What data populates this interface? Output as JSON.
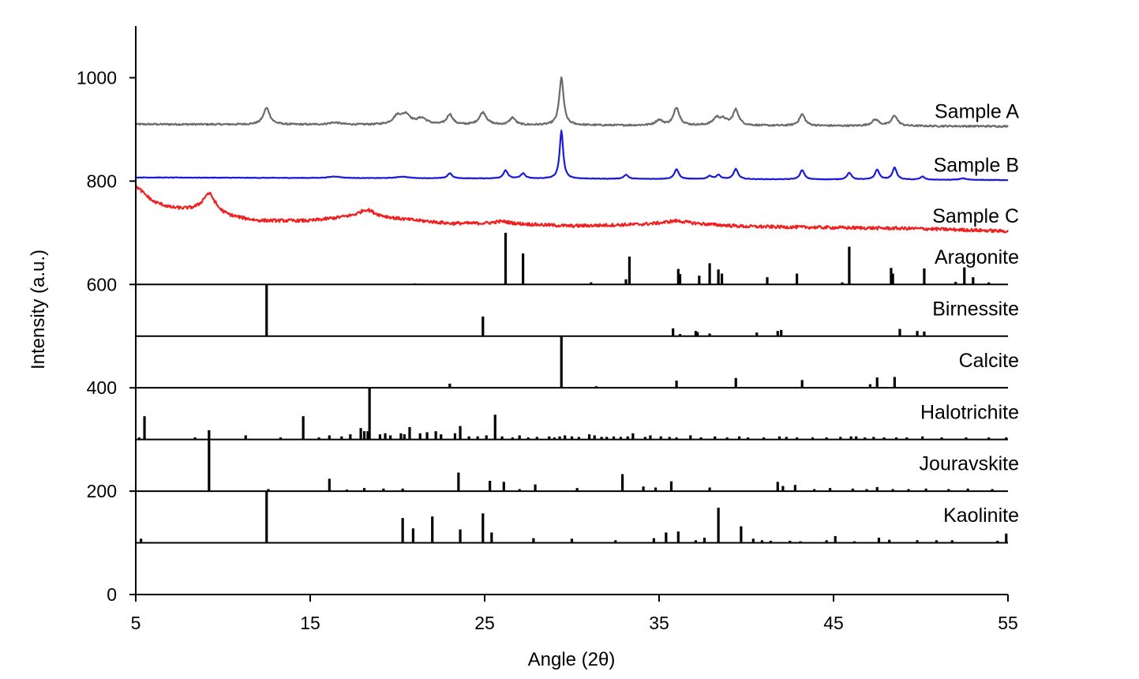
{
  "chart_data": {
    "type": "line",
    "title": "",
    "xlabel": "Angle (2θ)",
    "ylabel": "Intensity (a.u.)",
    "xlim": [
      5,
      55
    ],
    "ylim": [
      0,
      1100
    ],
    "x_ticks": [
      "5",
      "15",
      "25",
      "35",
      "45",
      "55"
    ],
    "y_ticks": [
      "0",
      "200",
      "400",
      "600",
      "800",
      "1000"
    ],
    "grid": false,
    "legend": "none (series labeled directly at right)",
    "series": [
      {
        "name": "Sample A",
        "kind": "pattern",
        "color": "#6b6b6b",
        "baseline": [
          [
            5,
            910
          ],
          [
            55,
            906
          ]
        ],
        "noise": 1.5,
        "peaks": [
          [
            12.5,
            32,
            0.22
          ],
          [
            16.4,
            4,
            0.4
          ],
          [
            20.0,
            16,
            0.3
          ],
          [
            20.5,
            18,
            0.3
          ],
          [
            21.4,
            12,
            0.35
          ],
          [
            23.0,
            20,
            0.2
          ],
          [
            24.9,
            24,
            0.25
          ],
          [
            26.6,
            14,
            0.2
          ],
          [
            29.4,
            92,
            0.15
          ],
          [
            35.0,
            10,
            0.25
          ],
          [
            36.0,
            34,
            0.2
          ],
          [
            38.3,
            14,
            0.25
          ],
          [
            38.7,
            10,
            0.25
          ],
          [
            39.4,
            30,
            0.2
          ],
          [
            43.2,
            22,
            0.2
          ],
          [
            47.4,
            12,
            0.25
          ],
          [
            48.5,
            20,
            0.2
          ]
        ]
      },
      {
        "name": "Sample B",
        "kind": "pattern",
        "color": "#1a1adb",
        "baseline": [
          [
            5,
            807
          ],
          [
            55,
            802
          ]
        ],
        "noise": 0.5,
        "peaks": [
          [
            16.4,
            3,
            0.4
          ],
          [
            20.3,
            3,
            0.4
          ],
          [
            23.0,
            10,
            0.15
          ],
          [
            26.2,
            16,
            0.15
          ],
          [
            27.2,
            10,
            0.15
          ],
          [
            29.4,
            93,
            0.12
          ],
          [
            33.1,
            8,
            0.15
          ],
          [
            36.0,
            19,
            0.15
          ],
          [
            37.9,
            6,
            0.15
          ],
          [
            38.4,
            8,
            0.15
          ],
          [
            39.4,
            20,
            0.15
          ],
          [
            43.2,
            18,
            0.15
          ],
          [
            45.9,
            13,
            0.15
          ],
          [
            47.5,
            19,
            0.15
          ],
          [
            48.5,
            23,
            0.15
          ],
          [
            50.1,
            6,
            0.15
          ],
          [
            52.4,
            3,
            0.2
          ]
        ]
      },
      {
        "name": "Sample C",
        "kind": "pattern",
        "color": "#f02020",
        "baseline": [
          [
            5,
            790
          ],
          [
            6,
            760
          ],
          [
            7,
            748
          ],
          [
            8.5,
            742
          ],
          [
            10.5,
            730
          ],
          [
            12,
            723
          ],
          [
            15,
            723
          ],
          [
            17,
            730
          ],
          [
            18.5,
            733
          ],
          [
            20,
            727
          ],
          [
            23,
            718
          ],
          [
            26,
            718
          ],
          [
            30,
            713
          ],
          [
            34,
            716
          ],
          [
            36,
            719
          ],
          [
            40,
            712
          ],
          [
            45,
            710
          ],
          [
            50,
            708
          ],
          [
            55,
            703
          ]
        ],
        "noise": 3,
        "peaks": [
          [
            9.2,
            38,
            0.45
          ],
          [
            18.2,
            12,
            0.5
          ],
          [
            26.0,
            4,
            0.5
          ],
          [
            36.0,
            4,
            0.8
          ]
        ]
      },
      {
        "name": "Aragonite",
        "kind": "reference",
        "color": "#000000",
        "baseline_y": 600,
        "peaks": [
          [
            21.0,
            2
          ],
          [
            26.2,
            100
          ],
          [
            27.2,
            60
          ],
          [
            31.1,
            4
          ],
          [
            33.1,
            10
          ],
          [
            33.3,
            54
          ],
          [
            36.1,
            30
          ],
          [
            36.2,
            20
          ],
          [
            37.3,
            17
          ],
          [
            37.9,
            41
          ],
          [
            38.4,
            29
          ],
          [
            38.6,
            21
          ],
          [
            41.2,
            14
          ],
          [
            42.9,
            21
          ],
          [
            45.5,
            4
          ],
          [
            45.9,
            73
          ],
          [
            48.3,
            32
          ],
          [
            48.4,
            21
          ],
          [
            50.2,
            31
          ],
          [
            52.0,
            5
          ],
          [
            52.5,
            33
          ],
          [
            53.0,
            14
          ],
          [
            53.9,
            4
          ]
        ]
      },
      {
        "name": "Birnessite",
        "kind": "reference",
        "color": "#000000",
        "baseline_y": 500,
        "peaks": [
          [
            12.5,
            100
          ],
          [
            24.9,
            38
          ],
          [
            35.8,
            15
          ],
          [
            36.2,
            4
          ],
          [
            37.1,
            10
          ],
          [
            37.2,
            8
          ],
          [
            37.9,
            5
          ],
          [
            40.6,
            7
          ],
          [
            41.8,
            10
          ],
          [
            42.0,
            12
          ],
          [
            48.8,
            14
          ],
          [
            49.8,
            10
          ],
          [
            50.2,
            9
          ]
        ]
      },
      {
        "name": "Calcite",
        "kind": "reference",
        "color": "#000000",
        "baseline_y": 400,
        "peaks": [
          [
            23.0,
            8
          ],
          [
            29.4,
            100
          ],
          [
            31.4,
            3
          ],
          [
            36.0,
            14
          ],
          [
            39.4,
            19
          ],
          [
            43.2,
            15
          ],
          [
            47.1,
            7
          ],
          [
            47.5,
            20
          ],
          [
            48.5,
            21
          ]
        ]
      },
      {
        "name": "Halotrichite",
        "kind": "reference",
        "color": "#000000",
        "baseline_y": 300,
        "peaks": [
          [
            5.2,
            4
          ],
          [
            5.5,
            45
          ],
          [
            8.4,
            4
          ],
          [
            9.2,
            18
          ],
          [
            11.3,
            8
          ],
          [
            13.3,
            4
          ],
          [
            14.6,
            45
          ],
          [
            15.5,
            4
          ],
          [
            16.1,
            8
          ],
          [
            16.8,
            6
          ],
          [
            17.3,
            10
          ],
          [
            17.9,
            22
          ],
          [
            18.1,
            16
          ],
          [
            18.3,
            16
          ],
          [
            18.4,
            100
          ],
          [
            19.0,
            10
          ],
          [
            19.3,
            12
          ],
          [
            19.6,
            8
          ],
          [
            20.2,
            12
          ],
          [
            20.4,
            10
          ],
          [
            20.7,
            24
          ],
          [
            21.3,
            12
          ],
          [
            21.7,
            14
          ],
          [
            22.2,
            16
          ],
          [
            22.5,
            10
          ],
          [
            23.3,
            12
          ],
          [
            23.6,
            26
          ],
          [
            24.1,
            6
          ],
          [
            24.6,
            6
          ],
          [
            25.1,
            8
          ],
          [
            25.6,
            48
          ],
          [
            26.0,
            6
          ],
          [
            26.6,
            4
          ],
          [
            27.0,
            8
          ],
          [
            27.5,
            4
          ],
          [
            28.0,
            5
          ],
          [
            28.7,
            6
          ],
          [
            29.0,
            4
          ],
          [
            29.3,
            6
          ],
          [
            29.6,
            8
          ],
          [
            30.0,
            6
          ],
          [
            30.4,
            5
          ],
          [
            31.0,
            10
          ],
          [
            31.3,
            8
          ],
          [
            31.7,
            5
          ],
          [
            32.0,
            5
          ],
          [
            32.4,
            6
          ],
          [
            32.8,
            5
          ],
          [
            33.2,
            6
          ],
          [
            33.5,
            12
          ],
          [
            34.2,
            5
          ],
          [
            34.5,
            8
          ],
          [
            35.1,
            6
          ],
          [
            35.6,
            5
          ],
          [
            36.0,
            4
          ],
          [
            36.8,
            8
          ],
          [
            37.4,
            4
          ],
          [
            38.2,
            6
          ],
          [
            38.9,
            4
          ],
          [
            39.6,
            6
          ],
          [
            40.1,
            4
          ],
          [
            41.0,
            4
          ],
          [
            41.9,
            6
          ],
          [
            42.3,
            5
          ],
          [
            42.9,
            4
          ],
          [
            43.8,
            4
          ],
          [
            44.6,
            4
          ],
          [
            45.4,
            5
          ],
          [
            46.0,
            6
          ],
          [
            46.3,
            6
          ],
          [
            46.8,
            4
          ],
          [
            47.3,
            5
          ],
          [
            47.9,
            4
          ],
          [
            48.6,
            4
          ],
          [
            49.2,
            4
          ],
          [
            50.1,
            6
          ],
          [
            51.2,
            4
          ],
          [
            52.6,
            4
          ],
          [
            53.9,
            4
          ],
          [
            54.9,
            4
          ]
        ]
      },
      {
        "name": "Jouravskite",
        "kind": "reference",
        "color": "#000000",
        "baseline_y": 200,
        "peaks": [
          [
            9.2,
            100
          ],
          [
            12.6,
            4
          ],
          [
            16.1,
            24
          ],
          [
            17.1,
            3
          ],
          [
            18.1,
            6
          ],
          [
            19.2,
            5
          ],
          [
            20.3,
            5
          ],
          [
            23.5,
            36
          ],
          [
            25.3,
            20
          ],
          [
            26.1,
            18
          ],
          [
            27.0,
            4
          ],
          [
            27.9,
            13
          ],
          [
            30.3,
            6
          ],
          [
            32.9,
            33
          ],
          [
            34.1,
            9
          ],
          [
            34.8,
            7
          ],
          [
            35.7,
            19
          ],
          [
            37.9,
            7
          ],
          [
            41.8,
            18
          ],
          [
            42.1,
            10
          ],
          [
            42.8,
            12
          ],
          [
            43.9,
            4
          ],
          [
            44.8,
            6
          ],
          [
            46.1,
            5
          ],
          [
            46.9,
            4
          ],
          [
            47.5,
            8
          ],
          [
            48.4,
            4
          ],
          [
            49.3,
            4
          ],
          [
            50.3,
            5
          ],
          [
            51.6,
            4
          ],
          [
            52.7,
            5
          ],
          [
            54.1,
            4
          ]
        ]
      },
      {
        "name": "Kaolinite",
        "kind": "reference",
        "color": "#000000",
        "baseline_y": 100,
        "peaks": [
          [
            5.3,
            8
          ],
          [
            12.5,
            100
          ],
          [
            20.3,
            48
          ],
          [
            20.9,
            28
          ],
          [
            22.0,
            51
          ],
          [
            23.6,
            26
          ],
          [
            24.9,
            57
          ],
          [
            25.4,
            20
          ],
          [
            27.8,
            9
          ],
          [
            30.0,
            8
          ],
          [
            32.5,
            5
          ],
          [
            34.7,
            9
          ],
          [
            35.4,
            20
          ],
          [
            36.1,
            22
          ],
          [
            37.1,
            5
          ],
          [
            37.6,
            10
          ],
          [
            38.4,
            68
          ],
          [
            39.7,
            32
          ],
          [
            40.4,
            8
          ],
          [
            40.9,
            5
          ],
          [
            41.4,
            4
          ],
          [
            42.5,
            4
          ],
          [
            43.1,
            3
          ],
          [
            44.6,
            5
          ],
          [
            45.1,
            13
          ],
          [
            46.2,
            3
          ],
          [
            47.6,
            10
          ],
          [
            48.2,
            6
          ],
          [
            49.8,
            5
          ],
          [
            50.9,
            5
          ],
          [
            51.8,
            5
          ],
          [
            54.4,
            4
          ],
          [
            54.9,
            18
          ]
        ]
      }
    ]
  }
}
